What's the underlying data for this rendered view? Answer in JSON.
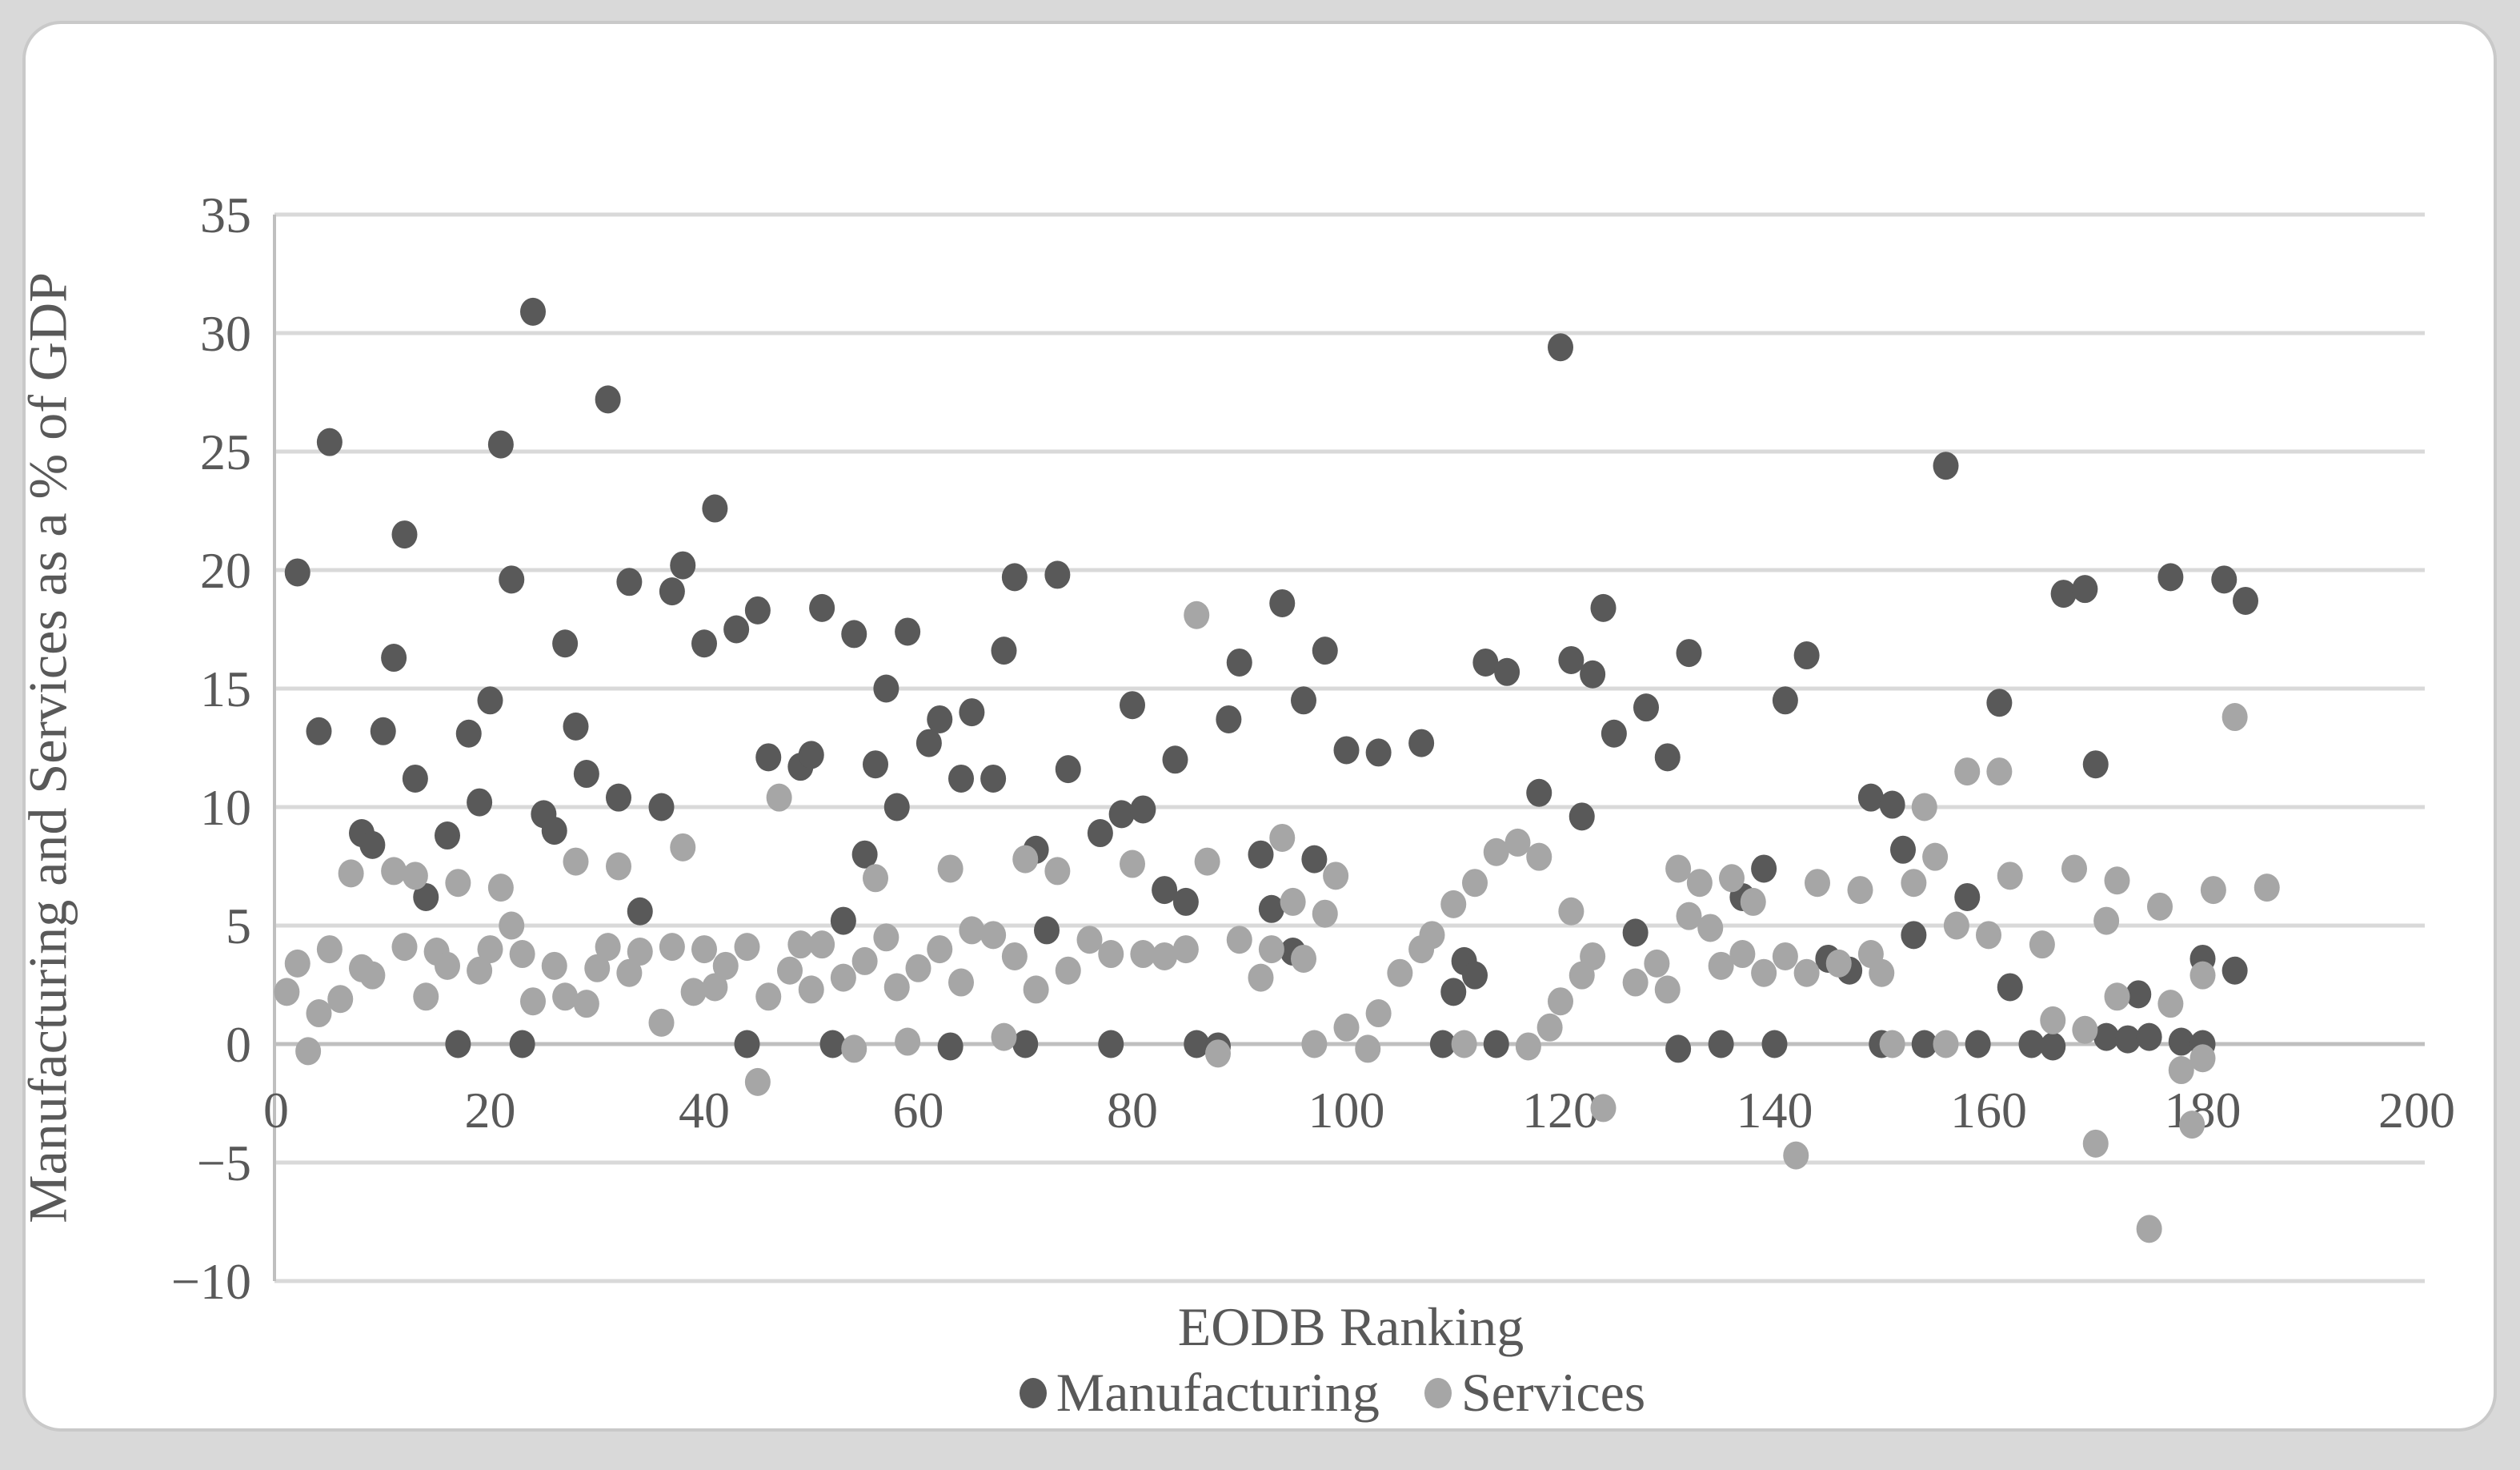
{
  "colors": {
    "page_background": "#d9d9d9",
    "card_background": "#ffffff",
    "card_border": "#c9c9c9",
    "gridline": "#d9d9d9",
    "axis_line": "#bfbfbf",
    "text": "#595959"
  },
  "chart_data": {
    "type": "scatter",
    "title": "",
    "xlabel": "EODB Ranking",
    "ylabel": "Manufacturing and Services as a % of GDP",
    "xlim": [
      0,
      200
    ],
    "ylim": [
      -10,
      35
    ],
    "x_ticks": [
      0,
      20,
      40,
      60,
      80,
      100,
      120,
      140,
      160,
      180,
      200
    ],
    "y_ticks": [
      35,
      30,
      25,
      20,
      15,
      10,
      5,
      0,
      -5,
      -10
    ],
    "grid": "horizontal",
    "legend_position": "bottom",
    "marker": {
      "rx": 16,
      "ry": 17.5
    },
    "series": [
      {
        "name": "Manufacturing",
        "color": "#595959",
        "points": [
          [
            2,
            19.9
          ],
          [
            4,
            13.2
          ],
          [
            5,
            25.4
          ],
          [
            8,
            8.9
          ],
          [
            9,
            8.4
          ],
          [
            10,
            13.2
          ],
          [
            11,
            16.3
          ],
          [
            12,
            21.5
          ],
          [
            13,
            11.2
          ],
          [
            14,
            6.2
          ],
          [
            16,
            8.8
          ],
          [
            17,
            0
          ],
          [
            18,
            13.1
          ],
          [
            19,
            10.2
          ],
          [
            20,
            14.5
          ],
          [
            21,
            25.3
          ],
          [
            22,
            19.6
          ],
          [
            23,
            0
          ],
          [
            24,
            30.9
          ],
          [
            25,
            9.7
          ],
          [
            26,
            9.0
          ],
          [
            27,
            16.9
          ],
          [
            28,
            13.4
          ],
          [
            29,
            11.4
          ],
          [
            31,
            27.2
          ],
          [
            32,
            10.4
          ],
          [
            33,
            19.5
          ],
          [
            34,
            5.6
          ],
          [
            36,
            10.0
          ],
          [
            37,
            19.1
          ],
          [
            38,
            20.2
          ],
          [
            40,
            16.9
          ],
          [
            41,
            22.6
          ],
          [
            43,
            17.5
          ],
          [
            44,
            0
          ],
          [
            45,
            18.3
          ],
          [
            46,
            12.1
          ],
          [
            49,
            11.7
          ],
          [
            50,
            12.2
          ],
          [
            51,
            18.4
          ],
          [
            52,
            0
          ],
          [
            53,
            5.2
          ],
          [
            54,
            17.3
          ],
          [
            55,
            8.0
          ],
          [
            56,
            11.8
          ],
          [
            57,
            15.0
          ],
          [
            58,
            10.0
          ],
          [
            59,
            17.4
          ],
          [
            61,
            12.7
          ],
          [
            62,
            13.7
          ],
          [
            63,
            -0.1
          ],
          [
            64,
            11.2
          ],
          [
            65,
            14.0
          ],
          [
            67,
            11.2
          ],
          [
            68,
            16.6
          ],
          [
            69,
            19.7
          ],
          [
            70,
            0
          ],
          [
            71,
            8.2
          ],
          [
            72,
            4.8
          ],
          [
            73,
            19.8
          ],
          [
            74,
            11.6
          ],
          [
            77,
            8.9
          ],
          [
            78,
            0
          ],
          [
            79,
            9.7
          ],
          [
            80,
            14.3
          ],
          [
            81,
            9.9
          ],
          [
            83,
            6.5
          ],
          [
            84,
            12.0
          ],
          [
            85,
            6.0
          ],
          [
            86,
            0
          ],
          [
            88,
            -0.1
          ],
          [
            89,
            13.7
          ],
          [
            90,
            16.1
          ],
          [
            92,
            8.0
          ],
          [
            93,
            5.7
          ],
          [
            94,
            18.6
          ],
          [
            95,
            3.9
          ],
          [
            96,
            14.5
          ],
          [
            97,
            7.8
          ],
          [
            98,
            16.6
          ],
          [
            100,
            12.4
          ],
          [
            103,
            12.3
          ],
          [
            107,
            12.7
          ],
          [
            109,
            0
          ],
          [
            110,
            2.2
          ],
          [
            111,
            3.5
          ],
          [
            112,
            2.9
          ],
          [
            113,
            16.1
          ],
          [
            114,
            0
          ],
          [
            115,
            15.7
          ],
          [
            118,
            10.6
          ],
          [
            120,
            29.4
          ],
          [
            121,
            16.2
          ],
          [
            122,
            9.6
          ],
          [
            123,
            15.6
          ],
          [
            124,
            18.4
          ],
          [
            125,
            13.1
          ],
          [
            127,
            4.7
          ],
          [
            128,
            14.2
          ],
          [
            130,
            12.1
          ],
          [
            131,
            -0.2
          ],
          [
            132,
            16.5
          ],
          [
            135,
            0
          ],
          [
            137,
            6.2
          ],
          [
            139,
            7.4
          ],
          [
            140,
            0
          ],
          [
            141,
            14.5
          ],
          [
            143,
            16.4
          ],
          [
            145,
            3.6
          ],
          [
            147,
            3.1
          ],
          [
            149,
            10.4
          ],
          [
            150,
            0
          ],
          [
            151,
            10.1
          ],
          [
            152,
            8.2
          ],
          [
            153,
            4.6
          ],
          [
            154,
            0
          ],
          [
            156,
            24.4
          ],
          [
            158,
            6.2
          ],
          [
            159,
            0
          ],
          [
            161,
            14.4
          ],
          [
            162,
            2.4
          ],
          [
            164,
            0
          ],
          [
            166,
            -0.1
          ],
          [
            167,
            19.0
          ],
          [
            169,
            19.2
          ],
          [
            170,
            11.8
          ],
          [
            171,
            0.3
          ],
          [
            173,
            0.2
          ],
          [
            174,
            2.1
          ],
          [
            175,
            0.3
          ],
          [
            177,
            19.7
          ],
          [
            178,
            0.1
          ],
          [
            180,
            3.6
          ],
          [
            180,
            0
          ],
          [
            182,
            19.6
          ],
          [
            183,
            3.1
          ],
          [
            184,
            18.7
          ]
        ]
      },
      {
        "name": "Services",
        "color": "#a6a6a6",
        "points": [
          [
            1,
            2.2
          ],
          [
            2,
            3.4
          ],
          [
            3,
            -0.3
          ],
          [
            4,
            1.3
          ],
          [
            5,
            4.0
          ],
          [
            6,
            1.9
          ],
          [
            7,
            7.2
          ],
          [
            8,
            3.2
          ],
          [
            9,
            2.9
          ],
          [
            11,
            7.3
          ],
          [
            12,
            4.1
          ],
          [
            13,
            7.1
          ],
          [
            14,
            2.0
          ],
          [
            15,
            3.9
          ],
          [
            16,
            3.3
          ],
          [
            17,
            6.8
          ],
          [
            19,
            3.1
          ],
          [
            20,
            4.0
          ],
          [
            21,
            6.6
          ],
          [
            22,
            5.0
          ],
          [
            23,
            3.8
          ],
          [
            24,
            1.8
          ],
          [
            26,
            3.3
          ],
          [
            27,
            2.0
          ],
          [
            28,
            7.7
          ],
          [
            29,
            1.7
          ],
          [
            30,
            3.2
          ],
          [
            31,
            4.1
          ],
          [
            32,
            7.5
          ],
          [
            33,
            3.0
          ],
          [
            34,
            3.9
          ],
          [
            36,
            0.9
          ],
          [
            37,
            4.1
          ],
          [
            38,
            8.3
          ],
          [
            39,
            2.2
          ],
          [
            40,
            4.0
          ],
          [
            41,
            2.4
          ],
          [
            42,
            3.3
          ],
          [
            44,
            4.1
          ],
          [
            45,
            -1.6
          ],
          [
            46,
            2.0
          ],
          [
            47,
            10.4
          ],
          [
            48,
            3.1
          ],
          [
            49,
            4.2
          ],
          [
            50,
            2.3
          ],
          [
            51,
            4.2
          ],
          [
            53,
            2.8
          ],
          [
            54,
            -0.2
          ],
          [
            55,
            3.5
          ],
          [
            56,
            7.0
          ],
          [
            57,
            4.5
          ],
          [
            58,
            2.4
          ],
          [
            59,
            0.1
          ],
          [
            60,
            3.2
          ],
          [
            62,
            4.0
          ],
          [
            63,
            7.4
          ],
          [
            64,
            2.6
          ],
          [
            65,
            4.8
          ],
          [
            67,
            4.6
          ],
          [
            68,
            0.3
          ],
          [
            69,
            3.7
          ],
          [
            70,
            7.8
          ],
          [
            71,
            2.3
          ],
          [
            73,
            7.3
          ],
          [
            74,
            3.1
          ],
          [
            76,
            4.4
          ],
          [
            78,
            3.8
          ],
          [
            80,
            7.6
          ],
          [
            81,
            3.8
          ],
          [
            83,
            3.7
          ],
          [
            85,
            4.0
          ],
          [
            86,
            18.1
          ],
          [
            87,
            7.7
          ],
          [
            88,
            -0.4
          ],
          [
            90,
            4.4
          ],
          [
            92,
            2.8
          ],
          [
            93,
            4.0
          ],
          [
            94,
            8.7
          ],
          [
            95,
            6.0
          ],
          [
            96,
            3.6
          ],
          [
            97,
            0
          ],
          [
            98,
            5.5
          ],
          [
            99,
            7.1
          ],
          [
            100,
            0.7
          ],
          [
            102,
            -0.2
          ],
          [
            103,
            1.3
          ],
          [
            105,
            3.0
          ],
          [
            107,
            4.0
          ],
          [
            108,
            4.6
          ],
          [
            110,
            5.9
          ],
          [
            111,
            0
          ],
          [
            112,
            6.8
          ],
          [
            114,
            8.1
          ],
          [
            116,
            8.5
          ],
          [
            117,
            -0.1
          ],
          [
            118,
            7.9
          ],
          [
            119,
            0.7
          ],
          [
            120,
            1.8
          ],
          [
            121,
            5.6
          ],
          [
            122,
            2.9
          ],
          [
            123,
            3.7
          ],
          [
            124,
            -2.7
          ],
          [
            127,
            2.6
          ],
          [
            129,
            3.4
          ],
          [
            130,
            2.3
          ],
          [
            131,
            7.4
          ],
          [
            132,
            5.4
          ],
          [
            133,
            6.8
          ],
          [
            134,
            4.9
          ],
          [
            135,
            3.3
          ],
          [
            136,
            7.0
          ],
          [
            137,
            3.8
          ],
          [
            138,
            6.0
          ],
          [
            139,
            3.0
          ],
          [
            141,
            3.7
          ],
          [
            142,
            -4.7
          ],
          [
            143,
            3.0
          ],
          [
            144,
            6.8
          ],
          [
            146,
            3.4
          ],
          [
            148,
            6.5
          ],
          [
            149,
            3.8
          ],
          [
            150,
            3.0
          ],
          [
            151,
            0
          ],
          [
            153,
            6.8
          ],
          [
            154,
            10.0
          ],
          [
            155,
            7.9
          ],
          [
            156,
            0
          ],
          [
            157,
            5.0
          ],
          [
            158,
            11.5
          ],
          [
            160,
            4.6
          ],
          [
            161,
            11.5
          ],
          [
            162,
            7.1
          ],
          [
            165,
            4.2
          ],
          [
            166,
            1.0
          ],
          [
            168,
            7.4
          ],
          [
            169,
            0.6
          ],
          [
            170,
            -4.2
          ],
          [
            171,
            5.2
          ],
          [
            172,
            6.9
          ],
          [
            172,
            2.0
          ],
          [
            175,
            -7.8
          ],
          [
            176,
            5.8
          ],
          [
            177,
            1.7
          ],
          [
            178,
            -1.1
          ],
          [
            179,
            -3.4
          ],
          [
            180,
            2.9
          ],
          [
            180,
            -0.6
          ],
          [
            181,
            6.5
          ],
          [
            183,
            13.8
          ],
          [
            186,
            6.6
          ]
        ]
      }
    ]
  }
}
